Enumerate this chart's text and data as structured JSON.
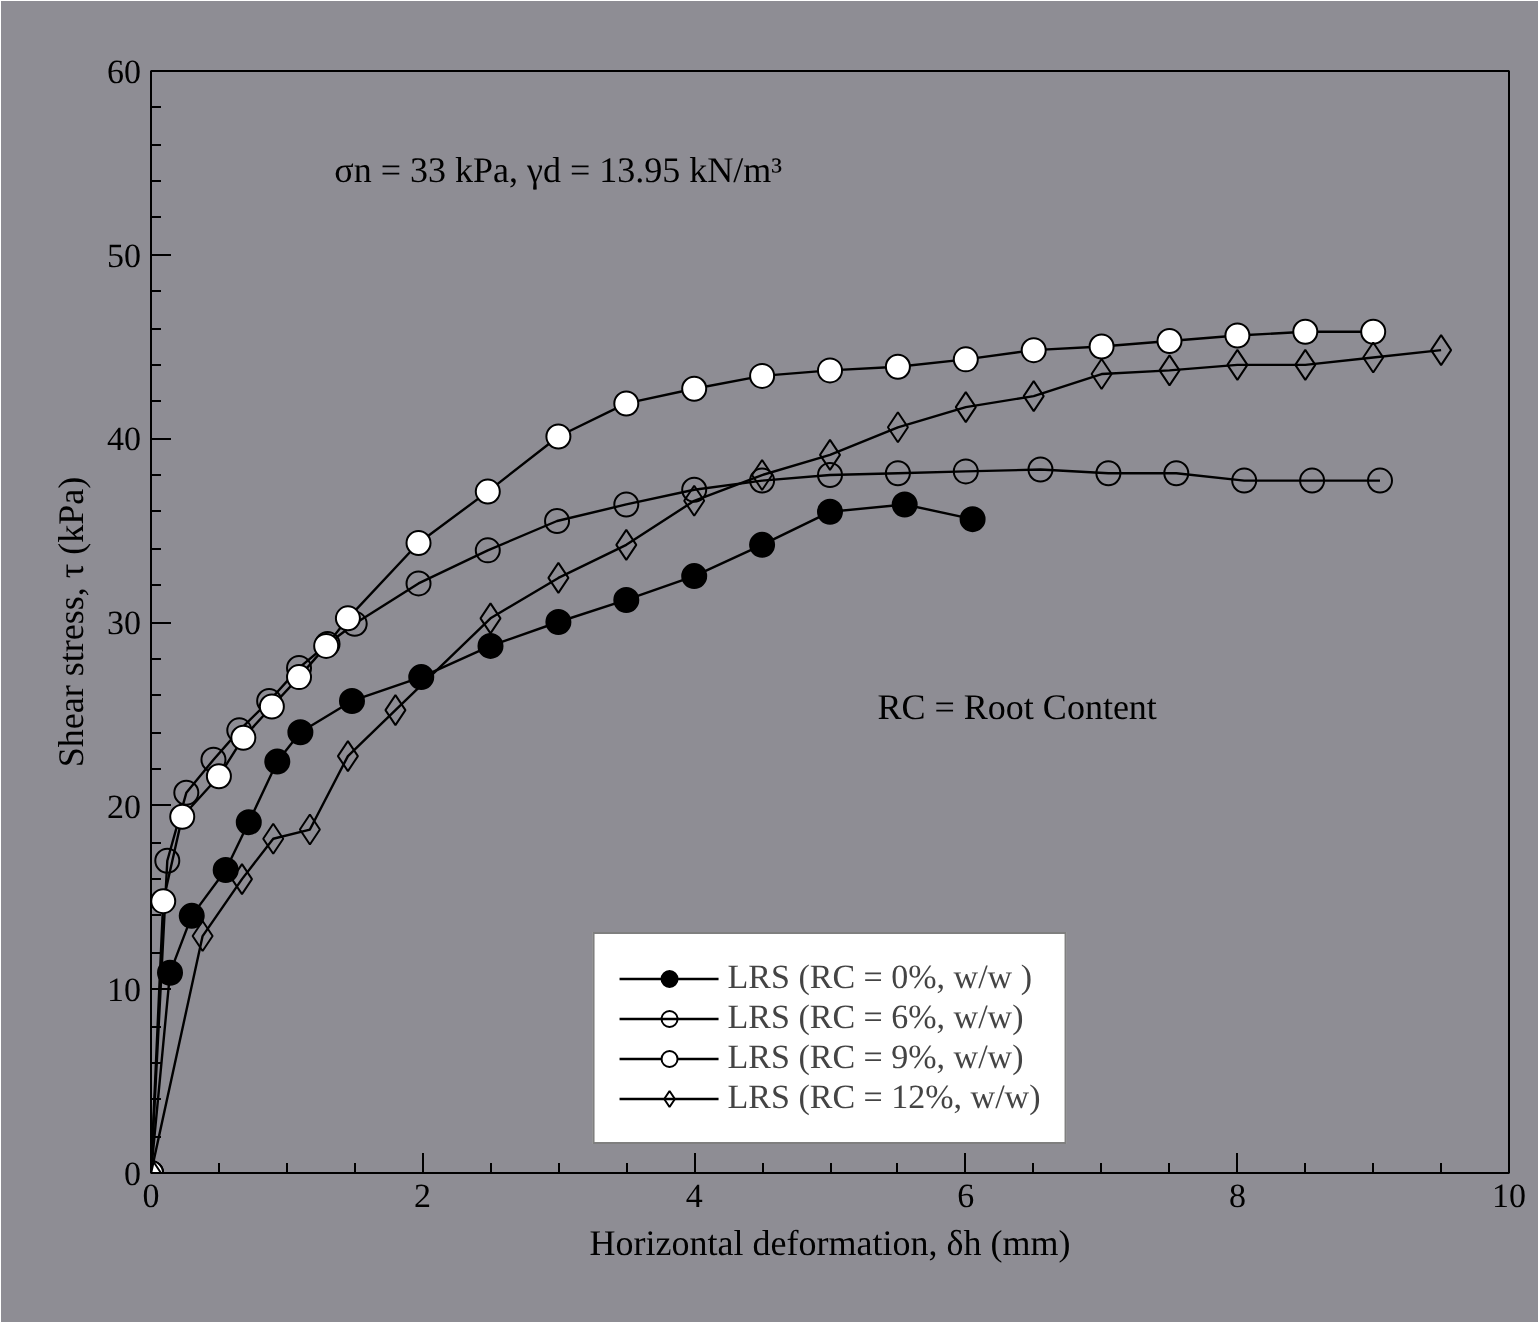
{
  "chart_data": {
    "type": "line",
    "xlabel": "Horizontal deformation, δh (mm)",
    "ylabel": "Shear stress, τ (kPa)",
    "annotations": [
      "σn = 33 kPa, γd = 13.95 kN/m³",
      "RC = Root Content"
    ],
    "xlim": [
      0,
      10
    ],
    "xticks": [
      0,
      2,
      4,
      6,
      8,
      10
    ],
    "ylim": [
      0,
      60
    ],
    "yticks": [
      0,
      10,
      20,
      30,
      40,
      50,
      60
    ],
    "grid": false,
    "legend": "bottom",
    "line_style": "solid",
    "series": [
      {
        "name": "LRS (RC = 0%, w/w )",
        "color": "#000000",
        "marker": "circle",
        "x": [
          0,
          0.14,
          0.3,
          0.55,
          0.72,
          0.93,
          1.1,
          1.48,
          1.99,
          2.5,
          3.0,
          3.5,
          4.0,
          4.5,
          5.0,
          5.55,
          6.05
        ],
        "values": [
          0,
          10.9,
          14.0,
          16.5,
          19.1,
          22.4,
          24.0,
          25.7,
          27.0,
          28.7,
          30.0,
          31.2,
          32.5,
          34.2,
          36.0,
          36.4,
          35.6
        ]
      },
      {
        "name": "LRS (RC = 6%, w/w)",
        "color": "#000000",
        "marker": "circle",
        "x": [
          0,
          0.12,
          0.26,
          0.46,
          0.65,
          0.87,
          1.09,
          1.3,
          1.5,
          1.97,
          2.48,
          2.99,
          3.5,
          4.0,
          4.5,
          5.0,
          5.5,
          6.0,
          6.55,
          7.05,
          7.55,
          8.05,
          8.55,
          9.05
        ],
        "values": [
          0,
          17.0,
          20.7,
          22.5,
          24.1,
          25.7,
          27.5,
          28.8,
          29.9,
          32.1,
          33.9,
          35.5,
          36.4,
          37.2,
          37.7,
          38.0,
          38.1,
          38.2,
          38.3,
          38.1,
          38.1,
          37.7,
          37.7,
          37.7
        ]
      },
      {
        "name": "LRS (RC = 9%, w/w)",
        "color": "#000000",
        "marker": "circle",
        "x": [
          0,
          0.09,
          0.23,
          0.5,
          0.68,
          0.89,
          1.09,
          1.29,
          1.45,
          1.97,
          2.48,
          3.0,
          3.5,
          4.0,
          4.5,
          5.0,
          5.5,
          6.0,
          6.5,
          7.0,
          7.5,
          8.0,
          8.5,
          9.0
        ],
        "values": [
          0,
          14.8,
          19.4,
          21.6,
          23.7,
          25.4,
          27.0,
          28.7,
          30.2,
          34.3,
          37.1,
          40.1,
          41.9,
          42.7,
          43.4,
          43.7,
          43.9,
          44.3,
          44.8,
          45.0,
          45.3,
          45.6,
          45.8,
          45.8
        ]
      },
      {
        "name": "LRS (RC = 12%, w/w)",
        "color": "#000000",
        "marker": "diamond",
        "x": [
          0,
          0.38,
          0.67,
          0.9,
          1.17,
          1.45,
          1.8,
          2.5,
          3.0,
          3.5,
          4.0,
          4.5,
          5.0,
          5.5,
          6.0,
          6.5,
          7.0,
          7.5,
          8.0,
          8.5,
          9.0,
          9.5
        ],
        "values": [
          0,
          12.9,
          16.0,
          18.2,
          18.7,
          22.7,
          25.2,
          30.2,
          32.4,
          34.2,
          36.6,
          38.0,
          39.1,
          40.6,
          41.7,
          42.3,
          43.5,
          43.7,
          44.0,
          44.0,
          44.4,
          44.8
        ]
      }
    ]
  }
}
